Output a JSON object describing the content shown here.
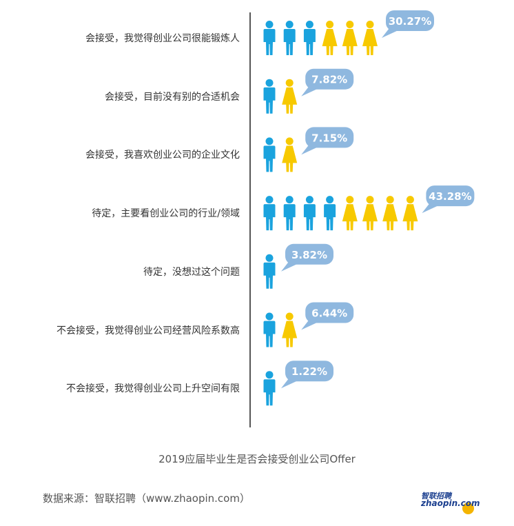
{
  "chart_data": {
    "type": "pictograph",
    "categories": [
      "会接受，我觉得创业公司很能锻炼人",
      "会接受，目前没有别的合适机会",
      "会接受，我喜欢创业公司的企业文化",
      "待定，主要看创业公司的行业/领域",
      "待定，没想过这个问题",
      "不会接受，我觉得创业公司经营风险系数高",
      "不会接受，我觉得创业公司上升空间有限"
    ],
    "values": [
      30.27,
      7.82,
      7.15,
      43.28,
      3.82,
      6.44,
      1.22
    ],
    "value_labels": [
      "30.27%",
      "7.82%",
      "7.15%",
      "43.28%",
      "3.82%",
      "6.44%",
      "1.22%"
    ],
    "icons": [
      {
        "male": 3,
        "female": 3
      },
      {
        "male": 1,
        "female": 1
      },
      {
        "male": 1,
        "female": 1
      },
      {
        "male": 4,
        "female": 4
      },
      {
        "male": 1,
        "female": 0
      },
      {
        "male": 1,
        "female": 1
      },
      {
        "male": 1,
        "female": 0
      }
    ],
    "colors": {
      "male": "#1aa3de",
      "female": "#f7c900",
      "bubble": "#8fb8df",
      "bubble_text": "#ffffff",
      "axis": "#555555"
    }
  },
  "caption": "2019应届毕业生是否会接受创业公司Offer",
  "source": "数据来源：智联招聘（www.zhaopin.com）",
  "logo": {
    "brand": "智联招聘",
    "domain": "zhaopin.com"
  }
}
